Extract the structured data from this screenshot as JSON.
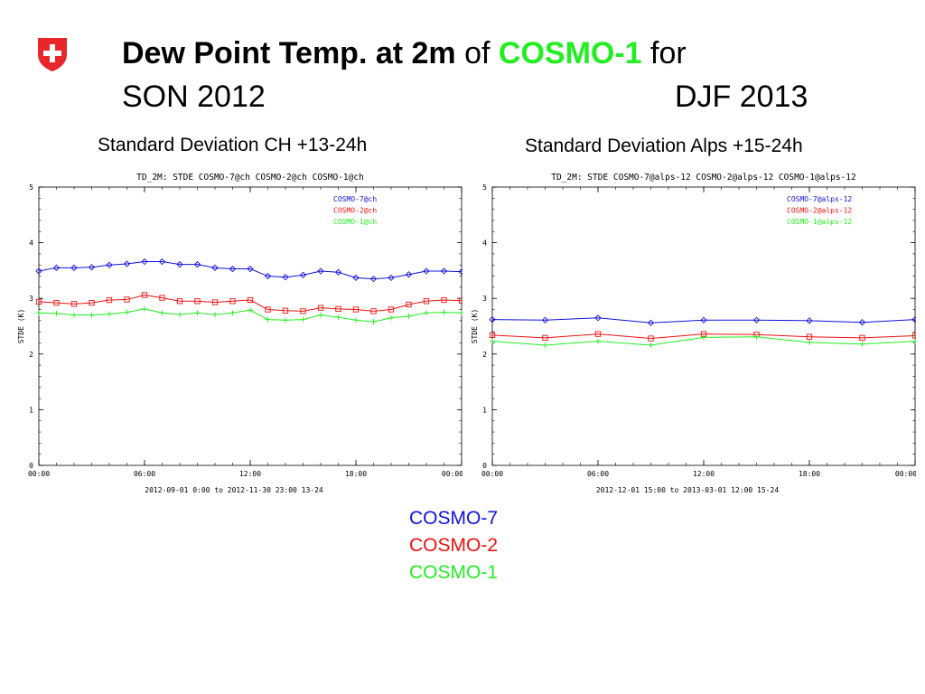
{
  "header": {
    "title_bold": "Dew Point Temp. at 2m",
    "title_of": " of ",
    "title_model": "COSMO-1",
    "title_for": " for",
    "period_left": "SON 2012",
    "period_right": "DJF 2013"
  },
  "subtitles": {
    "left": "Standard Deviation CH +13-24h",
    "right": "Standard Deviation Alps +15-24h"
  },
  "model_legend": {
    "cosmo7": "COSMO-7",
    "cosmo2": "COSMO-2",
    "cosmo1": "COSMO-1"
  },
  "colors": {
    "cosmo7": "#1111dd",
    "cosmo2": "#ee1111",
    "cosmo1": "#22ee22",
    "logo": "#e8262b"
  },
  "chart_data": [
    {
      "type": "line",
      "title": "TD_2M: STDE COSMO-7@ch COSMO-2@ch COSMO-1@ch",
      "ylabel": "STDE (K)",
      "xlabel": "2012-09-01  0:00 to 2012-11-30 23:00 13-24",
      "xlim": [
        0,
        24
      ],
      "ylim": [
        0,
        5
      ],
      "xticks": [
        "00:00",
        "06:00",
        "12:00",
        "18:00",
        "00:00"
      ],
      "yticks": [
        "0",
        "1",
        "2",
        "3",
        "4",
        "5"
      ],
      "x": [
        0,
        1,
        2,
        3,
        4,
        5,
        6,
        7,
        8,
        9,
        10,
        11,
        12,
        13,
        14,
        15,
        16,
        17,
        18,
        19,
        20,
        21,
        22,
        23,
        24
      ],
      "series": [
        {
          "name": "COSMO-7@ch",
          "marker": "diamond",
          "color": "#1111dd",
          "values": [
            3.49,
            3.55,
            3.55,
            3.56,
            3.6,
            3.62,
            3.66,
            3.66,
            3.61,
            3.61,
            3.55,
            3.53,
            3.53,
            3.4,
            3.38,
            3.42,
            3.49,
            3.47,
            3.37,
            3.35,
            3.37,
            3.43,
            3.49,
            3.49,
            3.48
          ]
        },
        {
          "name": "COSMO-2@ch",
          "marker": "square",
          "color": "#ee1111",
          "values": [
            2.94,
            2.92,
            2.9,
            2.92,
            2.97,
            2.98,
            3.06,
            3.01,
            2.95,
            2.95,
            2.93,
            2.95,
            2.97,
            2.8,
            2.78,
            2.77,
            2.83,
            2.81,
            2.8,
            2.77,
            2.8,
            2.89,
            2.95,
            2.97,
            2.96
          ]
        },
        {
          "name": "COSMO-1@ch",
          "marker": "plus",
          "color": "#22ee22",
          "values": [
            2.74,
            2.73,
            2.7,
            2.7,
            2.72,
            2.75,
            2.81,
            2.74,
            2.71,
            2.74,
            2.71,
            2.74,
            2.79,
            2.62,
            2.61,
            2.62,
            2.7,
            2.66,
            2.61,
            2.58,
            2.65,
            2.68,
            2.74,
            2.75,
            2.74
          ]
        }
      ]
    },
    {
      "type": "line",
      "title": "TD_2M: STDE COSMO-7@alps-12 COSMO-2@alps-12 COSMO-1@alps-12",
      "ylabel": "STDE (K)",
      "xlabel": "2012-12-01 15:00 to 2013-03-01 12:00 15-24",
      "xlim": [
        0,
        24
      ],
      "ylim": [
        0,
        5
      ],
      "xticks": [
        "00:00",
        "06:00",
        "12:00",
        "18:00",
        "00:00"
      ],
      "yticks": [
        "0",
        "1",
        "2",
        "3",
        "4",
        "5"
      ],
      "x": [
        0,
        3,
        6,
        9,
        12,
        15,
        18,
        21,
        24
      ],
      "series": [
        {
          "name": "COSMO-7@alps-12",
          "marker": "diamond",
          "color": "#1111dd",
          "values": [
            2.62,
            2.61,
            2.65,
            2.56,
            2.61,
            2.61,
            2.6,
            2.57,
            2.62
          ]
        },
        {
          "name": "COSMO-2@alps-12",
          "marker": "square",
          "color": "#ee1111",
          "values": [
            2.34,
            2.29,
            2.36,
            2.28,
            2.36,
            2.35,
            2.31,
            2.29,
            2.33
          ]
        },
        {
          "name": "COSMO-1@alps-12",
          "marker": "plus",
          "color": "#22ee22",
          "values": [
            2.23,
            2.16,
            2.23,
            2.16,
            2.3,
            2.31,
            2.21,
            2.18,
            2.23
          ]
        }
      ]
    }
  ]
}
